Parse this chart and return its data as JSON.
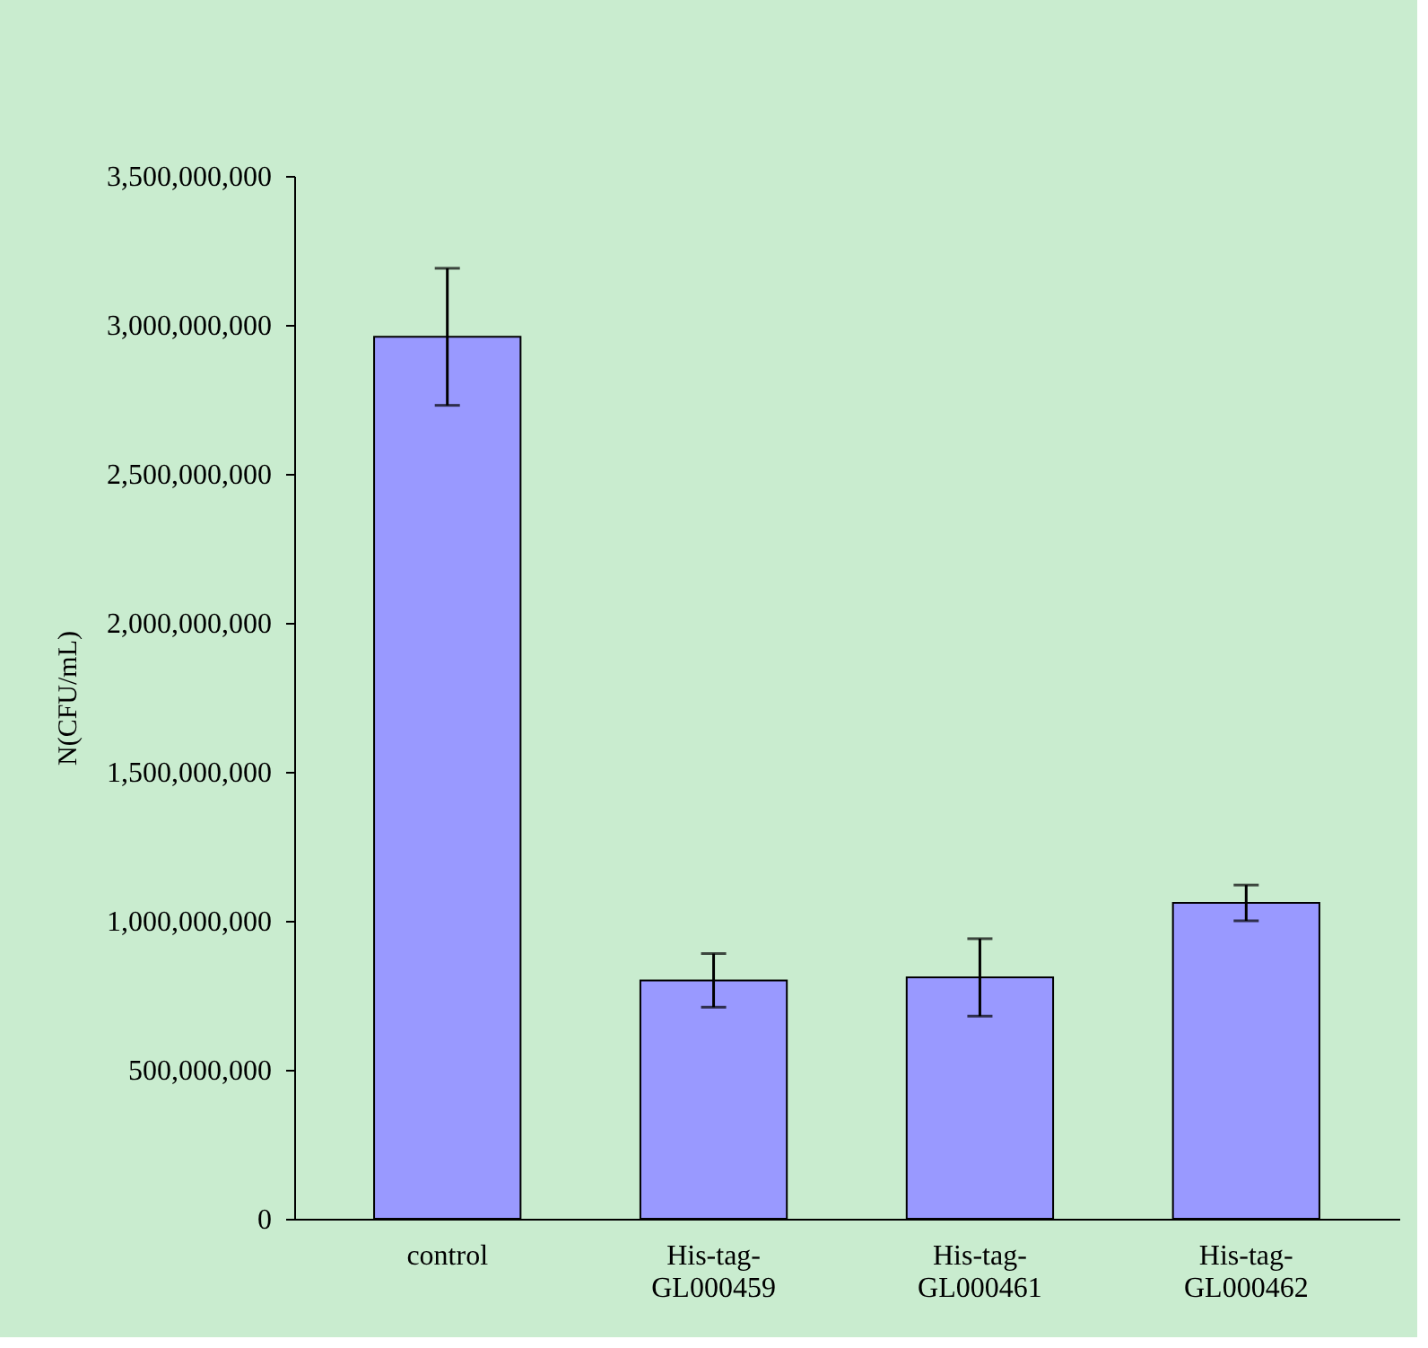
{
  "chart_data": {
    "type": "bar",
    "ylabel": "N(CFU/mL)",
    "categories": [
      "control",
      "His-tag-GL000459",
      "His-tag-GL000461",
      "His-tag-GL000462"
    ],
    "values": [
      2960000000,
      800000000,
      810000000,
      1060000000
    ],
    "errors": [
      230000000,
      90000000,
      130000000,
      60000000
    ],
    "color": "#9999ff",
    "ylim": [
      0,
      3500000000
    ],
    "yticks": [
      0,
      {
        "value": 500000000,
        "label": "500,000,000"
      },
      {
        "value": 1000000000,
        "label": "1,000,000,000"
      },
      {
        "value": 1500000000,
        "label": "1,500,000,000"
      },
      {
        "value": 2000000000,
        "label": "2,000,000,000"
      },
      {
        "value": 2500000000,
        "label": "2,500,000,000"
      },
      {
        "value": 3000000000,
        "label": "3,000,000,000"
      },
      {
        "value": 3500000000,
        "label": "3,500,000,000"
      }
    ],
    "grid": false
  }
}
